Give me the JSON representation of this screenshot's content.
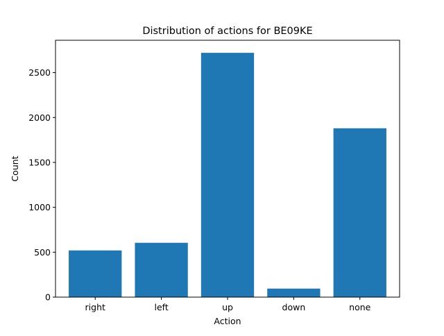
{
  "chart_data": {
    "type": "bar",
    "title": "Distribution of actions for BE09KE",
    "xlabel": "Action",
    "ylabel": "Count",
    "categories": [
      "right",
      "left",
      "up",
      "down",
      "none"
    ],
    "values": [
      520,
      605,
      2720,
      95,
      1880
    ],
    "ylim": [
      0,
      2860
    ],
    "yticks": [
      0,
      500,
      1000,
      1500,
      2000,
      2500
    ],
    "bar_color": "#1f77b4",
    "grid": false,
    "legend": "none"
  }
}
